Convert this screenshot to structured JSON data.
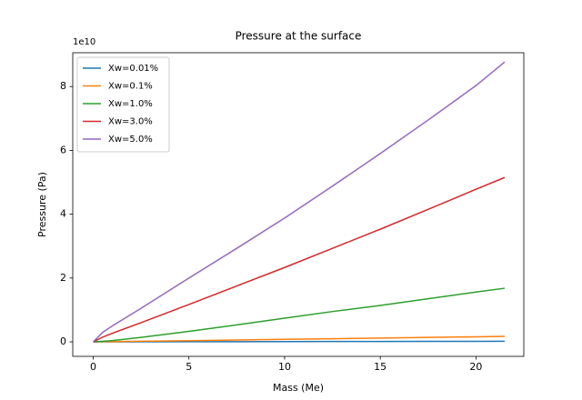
{
  "chart_data": {
    "type": "line",
    "title": "Pressure at the surface",
    "xlabel": "Mass (Me)",
    "ylabel": "Pressure (Pa)",
    "y_offset_label": "1e10",
    "x": [
      0,
      0.5,
      1,
      2.5,
      5,
      7.5,
      10,
      12.5,
      15,
      17.5,
      20,
      21.5
    ],
    "series": [
      {
        "name": "Xw=0.01%",
        "color": "#1f77b4",
        "values": [
          0,
          0.0005,
          0.001,
          0.002,
          0.004,
          0.006,
          0.008,
          0.01,
          0.012,
          0.014,
          0.016,
          0.017
        ]
      },
      {
        "name": "Xw=0.1%",
        "color": "#ff7f0e",
        "values": [
          0,
          0.003,
          0.007,
          0.018,
          0.038,
          0.058,
          0.078,
          0.098,
          0.118,
          0.138,
          0.158,
          0.17
        ]
      },
      {
        "name": "Xw=1.0%",
        "color": "#2ca02c",
        "values": [
          0,
          0.02,
          0.04,
          0.14,
          0.33,
          0.53,
          0.74,
          0.95,
          1.14,
          1.35,
          1.56,
          1.68
        ]
      },
      {
        "name": "Xw=3.0%",
        "color": "#d62728",
        "values": [
          0,
          0.15,
          0.27,
          0.6,
          1.17,
          1.75,
          2.33,
          2.93,
          3.53,
          4.15,
          4.78,
          5.15
        ]
      },
      {
        "name": "Xw=5.0%",
        "color": "#9467bd",
        "values": [
          0,
          0.3,
          0.5,
          1.05,
          2.0,
          2.93,
          3.88,
          4.88,
          5.9,
          6.95,
          8.03,
          8.77
        ]
      }
    ],
    "xlim": [
      -1.07,
      22.5
    ],
    "xticks": [
      0,
      5,
      10,
      15,
      20
    ],
    "ylim": [
      -0.455,
      9.06
    ],
    "yticks": [
      0,
      2,
      4,
      6,
      8
    ],
    "legend": "upper left",
    "grid": false
  }
}
